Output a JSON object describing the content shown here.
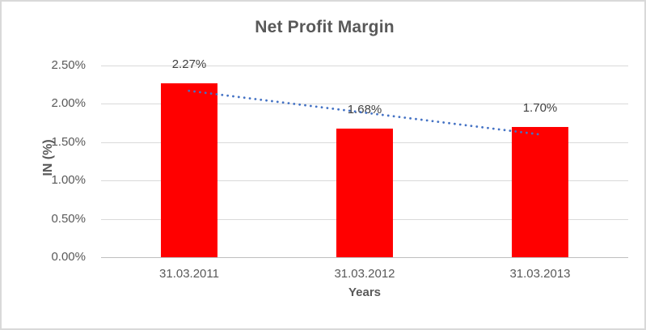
{
  "frame": {
    "background": "#ffffff",
    "border_color": "#d9d9d9"
  },
  "chart_data": {
    "type": "bar",
    "title": "Net Profit Margin",
    "categories": [
      "31.03.2011",
      "31.03.2012",
      "31.03.2013"
    ],
    "values": [
      2.27,
      1.68,
      1.7
    ],
    "value_labels": [
      "2.27%",
      "1.68%",
      "1.70%"
    ],
    "xlabel": "Years",
    "ylabel": "IN (%)",
    "ylim": [
      0,
      2.5
    ],
    "y_ticks": [
      {
        "value": 0.0,
        "label": "0.00%"
      },
      {
        "value": 0.5,
        "label": "0.50%"
      },
      {
        "value": 1.0,
        "label": "1.00%"
      },
      {
        "value": 1.5,
        "label": "1.50%"
      },
      {
        "value": 2.0,
        "label": "2.00%"
      },
      {
        "value": 2.5,
        "label": "2.50%"
      }
    ],
    "grid": true,
    "legend": "none",
    "bar_color": "#ff0000",
    "grid_color": "#d9d9d9",
    "axis_line_color": "#bfbfbf",
    "trendline": {
      "type": "linear",
      "style": "dotted",
      "color": "#4472c4",
      "start_value": 2.17,
      "end_value": 1.6
    },
    "text_colors": {
      "title": "#595959",
      "ticks": "#595959",
      "data_labels": "#404040",
      "axis_titles": "#595959"
    }
  }
}
